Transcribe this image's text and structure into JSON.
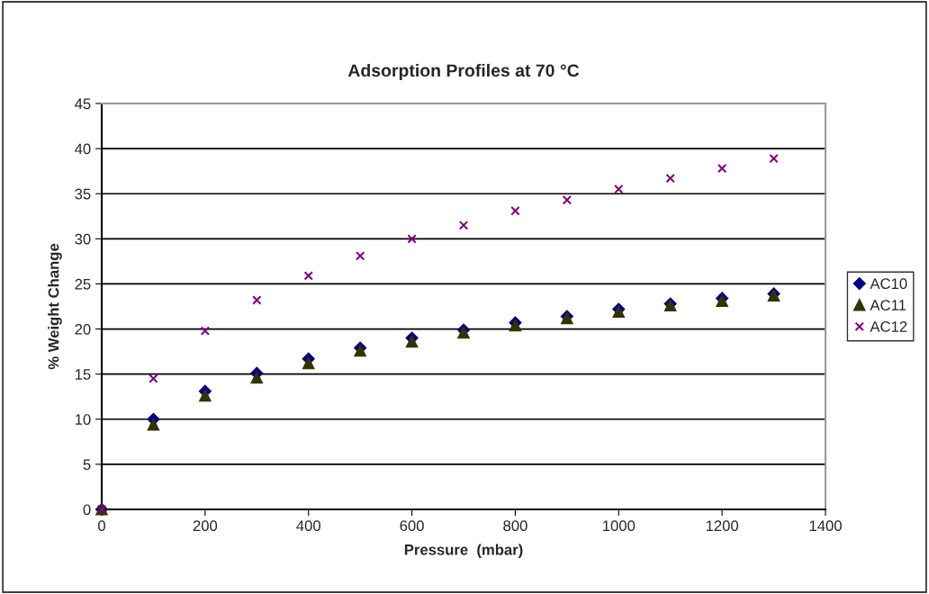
{
  "chart_data": {
    "type": "scatter",
    "title": "Adsorption Profiles at 70 °C",
    "xlabel": "Pressure  (mbar)",
    "ylabel": "% Weight Change",
    "x": [
      0,
      100,
      200,
      300,
      400,
      500,
      600,
      700,
      800,
      900,
      1000,
      1100,
      1200,
      1300
    ],
    "series": [
      {
        "name": "AC10",
        "color": "#000080",
        "marker": "diamond",
        "values": [
          0,
          10,
          13.1,
          15.1,
          16.7,
          17.9,
          19,
          19.9,
          20.7,
          21.4,
          22.2,
          22.8,
          23.4,
          23.9
        ]
      },
      {
        "name": "AC11",
        "color": "#333300",
        "marker": "triangle",
        "values": [
          0,
          9.4,
          12.6,
          14.6,
          16.2,
          17.6,
          18.6,
          19.6,
          20.4,
          21.2,
          21.9,
          22.6,
          23.1,
          23.7
        ]
      },
      {
        "name": "AC12",
        "color": "#800080",
        "marker": "cross",
        "values": [
          0,
          14.5,
          19.8,
          23.2,
          25.9,
          28.1,
          30,
          31.5,
          33.1,
          34.3,
          35.5,
          36.7,
          37.8,
          38.9
        ]
      }
    ],
    "xlim": [
      0,
      1400
    ],
    "xticks": [
      0,
      200,
      400,
      600,
      800,
      1000,
      1200,
      1400
    ],
    "ylim": [
      0,
      45
    ],
    "yticks": [
      0,
      5,
      10,
      15,
      20,
      25,
      30,
      35,
      40,
      45
    ],
    "grid": "y",
    "legend": "right"
  }
}
